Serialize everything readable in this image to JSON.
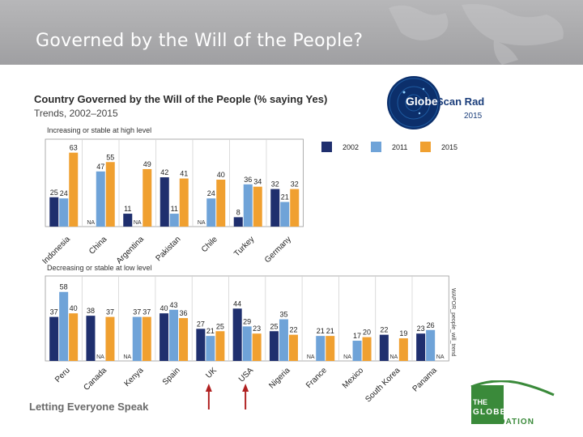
{
  "slide_title": "Governed by the Will of the People?",
  "footer": "Letting Everyone Speak",
  "radar_logo": {
    "word1": "Globe",
    "word2": "Scan Radar",
    "year": "2015"
  },
  "foundation_logo": {
    "line1": "THE",
    "line2": "GLOBESCAN",
    "line3": "FOUNDATION"
  },
  "side_note": "WAPOR_people_will_trend",
  "colors": {
    "y2002": "#1f2f6e",
    "y2011": "#6fa3d8",
    "y2015": "#f0a030",
    "accent_green": "#3a8a3a",
    "arrow": "#b02020"
  },
  "chart_data": {
    "type": "bar",
    "title": "Country Governed by the Will of the People (% saying Yes)",
    "subtitle": "Trends, 2002–2015",
    "legend": [
      "2002",
      "2011",
      "2015"
    ],
    "legend_position": "top-right",
    "na_label": "NA",
    "panels": [
      {
        "label": "Increasing or stable at high level",
        "countries": [
          "Indonesia",
          "China",
          "Argentina",
          "Pakistan",
          "Chile",
          "Turkey",
          "Germany"
        ],
        "series": [
          {
            "name": "2002",
            "values": [
              25,
              null,
              11,
              42,
              null,
              8,
              32
            ]
          },
          {
            "name": "2011",
            "values": [
              24,
              47,
              null,
              11,
              24,
              36,
              21
            ]
          },
          {
            "name": "2015",
            "values": [
              63,
              55,
              49,
              41,
              40,
              34,
              32
            ]
          }
        ]
      },
      {
        "label": "Decreasing or stable at low level",
        "countries": [
          "Peru",
          "Canada",
          "Kenya",
          "Spain",
          "UK",
          "USA",
          "Nigeria",
          "France",
          "Mexico",
          "South Korea",
          "Panama"
        ],
        "highlighted": [
          "UK",
          "USA"
        ],
        "series": [
          {
            "name": "2002",
            "values": [
              37,
              38,
              null,
              40,
              27,
              44,
              25,
              null,
              null,
              22,
              23
            ]
          },
          {
            "name": "2011",
            "values": [
              58,
              null,
              37,
              43,
              21,
              29,
              35,
              21,
              17,
              null,
              26
            ]
          },
          {
            "name": "2015",
            "values": [
              40,
              37,
              37,
              36,
              25,
              23,
              22,
              21,
              20,
              19,
              null
            ]
          }
        ]
      }
    ]
  }
}
